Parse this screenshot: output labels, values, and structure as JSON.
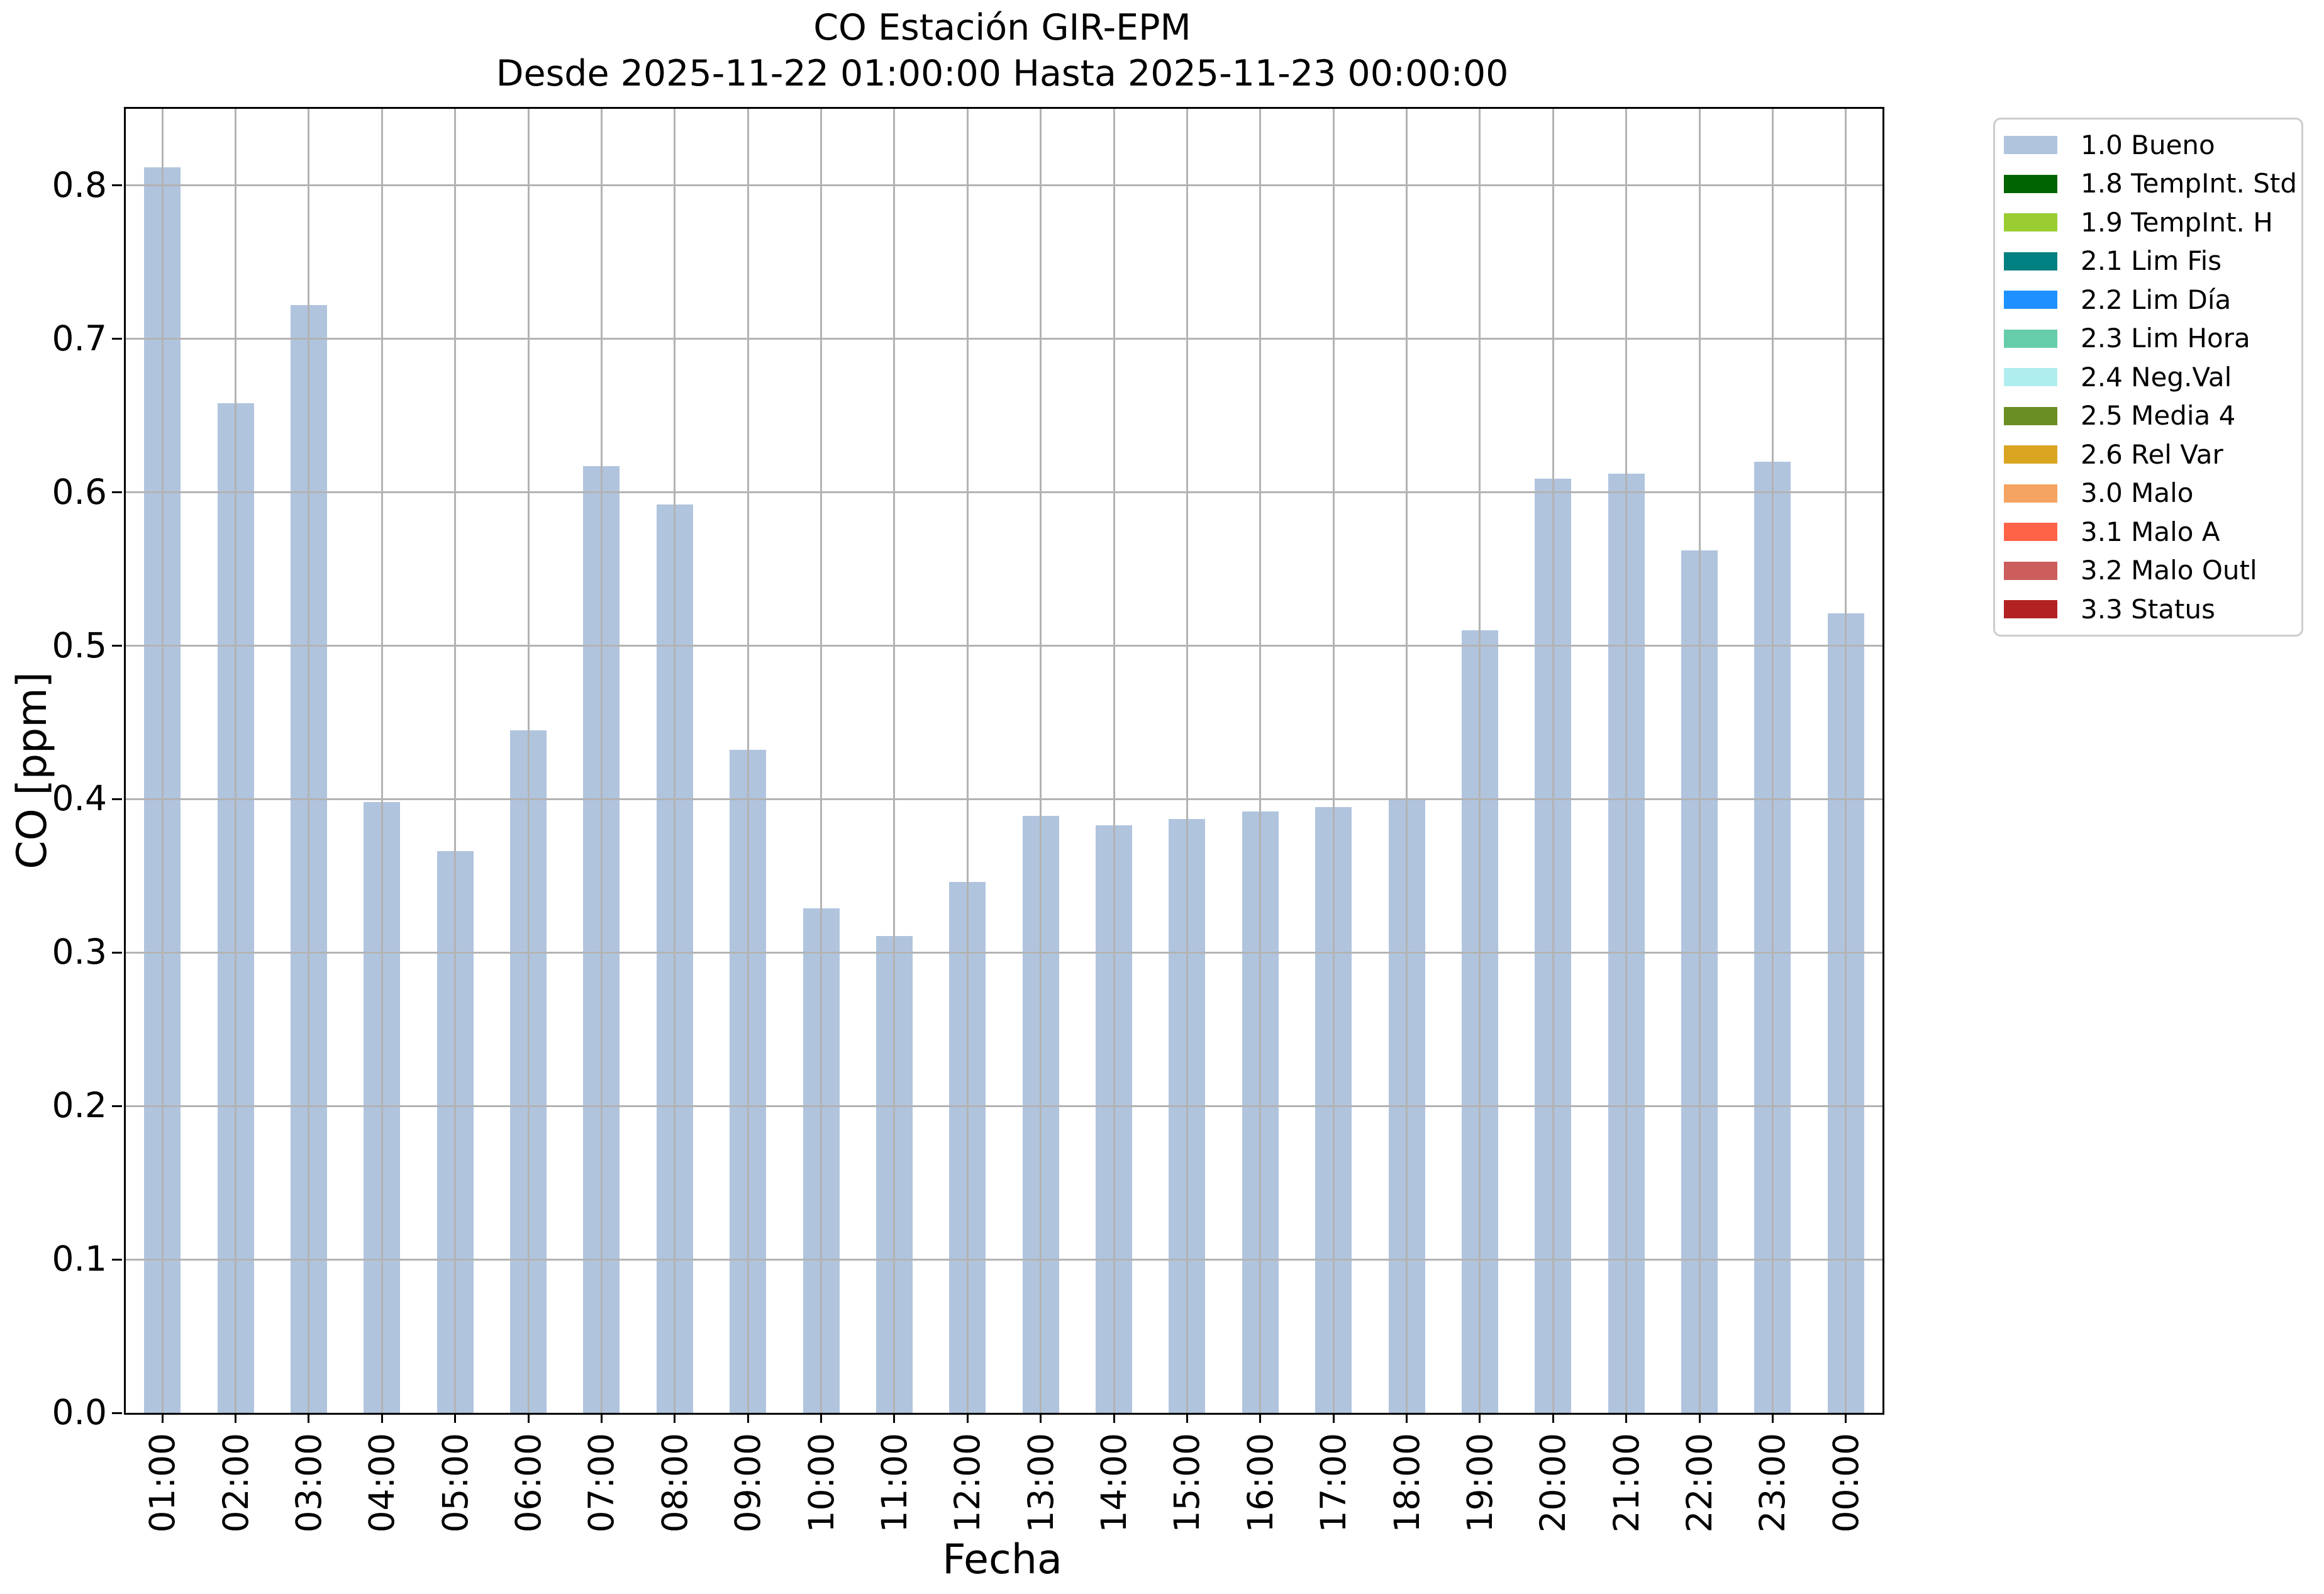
{
  "title": {
    "line1": "CO Estación GIR-EPM",
    "line2": "Desde 2025-11-22 01:00:00 Hasta 2025-11-23 00:00:00"
  },
  "axes": {
    "xlabel": "Fecha",
    "ylabel": "CO [ppm]",
    "ytick_labels": [
      "0.0",
      "0.1",
      "0.2",
      "0.3",
      "0.4",
      "0.5",
      "0.6",
      "0.7",
      "0.8"
    ]
  },
  "chart_data": {
    "type": "bar",
    "title": "CO Estación GIR-EPM",
    "subtitle": "Desde 2025-11-22 01:00:00 Hasta 2025-11-23 00:00:00",
    "xlabel": "Fecha",
    "ylabel": "CO [ppm]",
    "categories": [
      "01:00",
      "02:00",
      "03:00",
      "04:00",
      "05:00",
      "06:00",
      "07:00",
      "08:00",
      "09:00",
      "10:00",
      "11:00",
      "12:00",
      "13:00",
      "14:00",
      "15:00",
      "16:00",
      "17:00",
      "18:00",
      "19:00",
      "20:00",
      "21:00",
      "22:00",
      "23:00",
      "00:00"
    ],
    "series": [
      {
        "name": "1.0 Bueno",
        "color": "#b0c4de",
        "values": [
          0.812,
          0.658,
          0.722,
          0.398,
          0.366,
          0.445,
          0.617,
          0.592,
          0.432,
          0.329,
          0.311,
          0.346,
          0.389,
          0.383,
          0.387,
          0.392,
          0.395,
          0.4,
          0.51,
          0.609,
          0.612,
          0.562,
          0.62,
          0.521
        ]
      }
    ],
    "ylim": [
      0,
      0.85
    ],
    "yticks": [
      0.0,
      0.1,
      0.2,
      0.3,
      0.4,
      0.5,
      0.6,
      0.7,
      0.8
    ],
    "grid": true,
    "grid_on_top": true,
    "legend_position": "right-outside"
  },
  "legend": {
    "items": [
      {
        "label": "1.0 Bueno",
        "color": "#b0c4de"
      },
      {
        "label": "1.8 TempInt. Std",
        "color": "#006400"
      },
      {
        "label": "1.9 TempInt. H",
        "color": "#9acd32"
      },
      {
        "label": "2.1 Lim Fis",
        "color": "#008080"
      },
      {
        "label": "2.2 Lim Día",
        "color": "#1e90ff"
      },
      {
        "label": "2.3 Lim Hora",
        "color": "#66cdaa"
      },
      {
        "label": "2.4 Neg.Val",
        "color": "#afeeee"
      },
      {
        "label": "2.5 Media 4",
        "color": "#6b8e23"
      },
      {
        "label": "2.6 Rel Var",
        "color": "#daa520"
      },
      {
        "label": "3.0 Malo",
        "color": "#f4a460"
      },
      {
        "label": "3.1 Malo A",
        "color": "#ff6347"
      },
      {
        "label": "3.2 Malo Outl",
        "color": "#cd5c5c"
      },
      {
        "label": "3.3 Status",
        "color": "#b22222"
      }
    ]
  },
  "colors": {
    "bar": "#b0c4de",
    "grid": "#b3b3b3",
    "spine": "#000000",
    "legend_border": "#cccccc",
    "background": "#ffffff"
  }
}
